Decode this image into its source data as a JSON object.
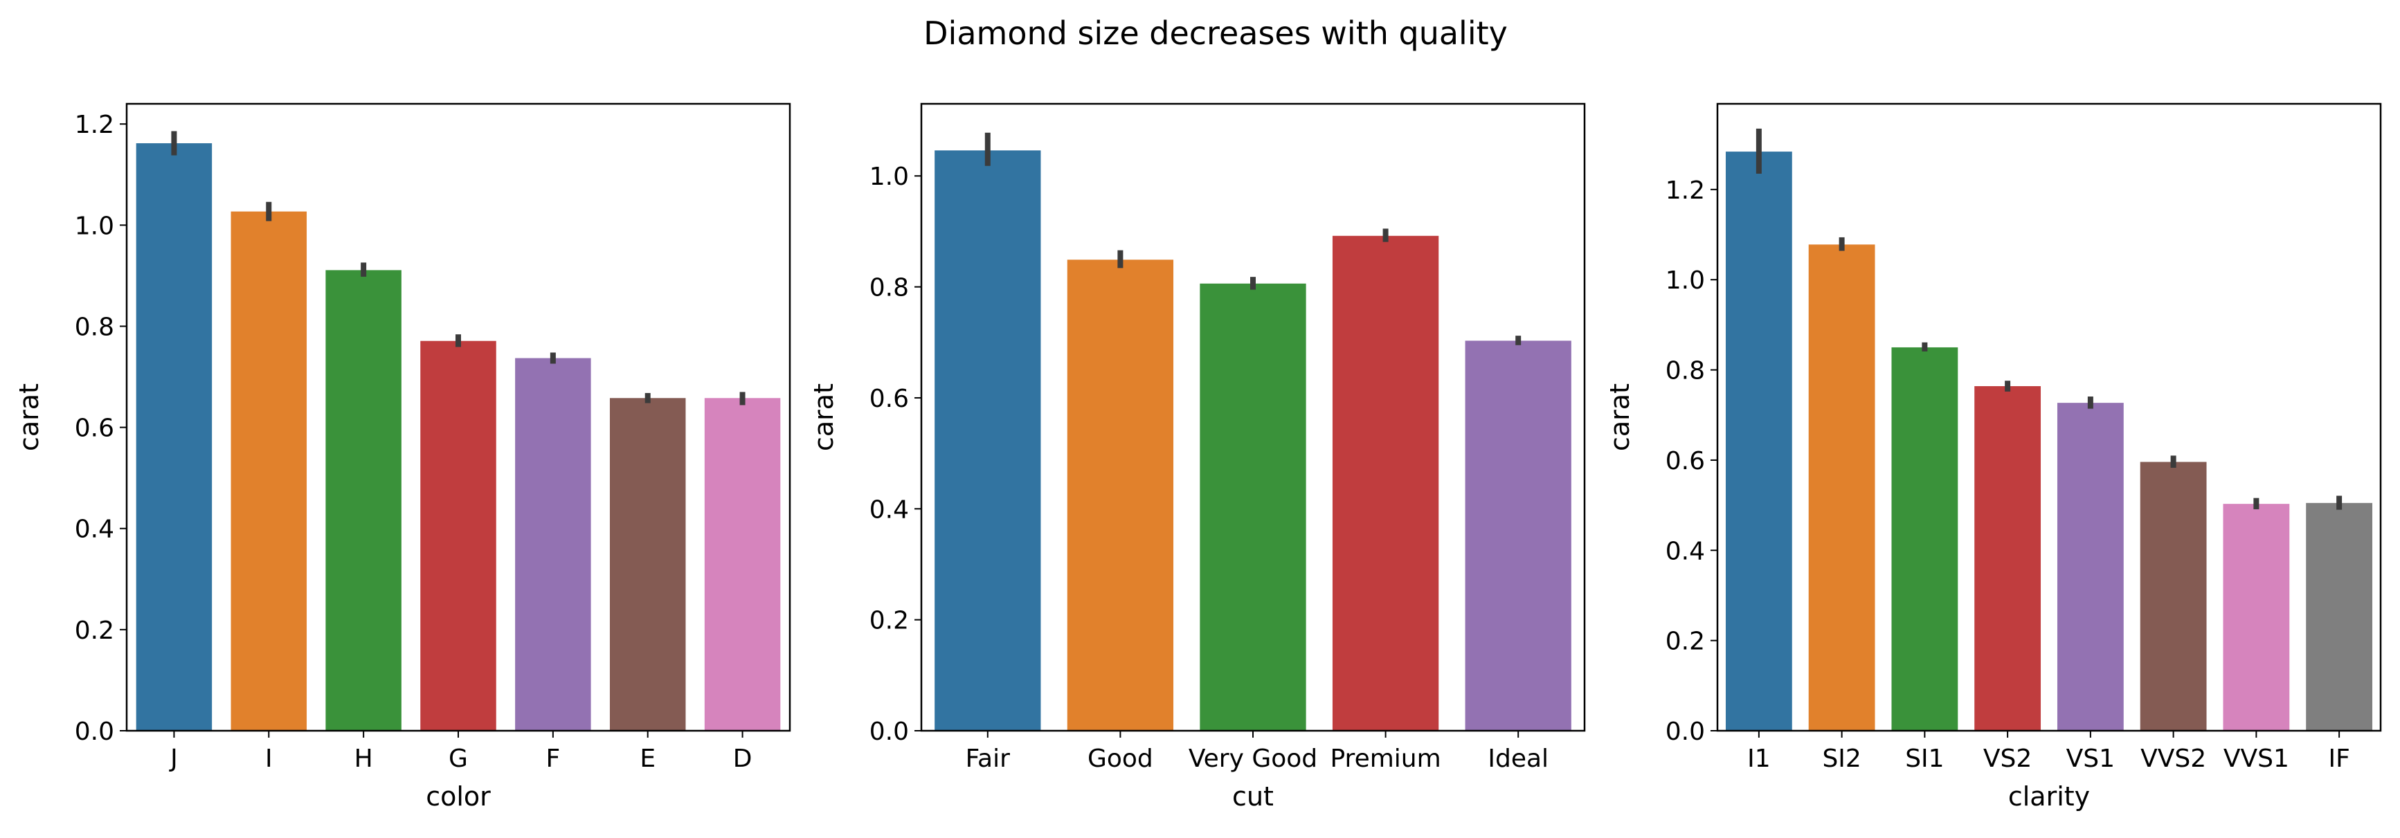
{
  "figure": {
    "title": "Diamond size decreases with quality"
  },
  "chart_data": [
    {
      "type": "bar",
      "xlabel": "color",
      "ylabel": "carat",
      "categories": [
        "J",
        "I",
        "H",
        "G",
        "F",
        "E",
        "D"
      ],
      "values": [
        1.162,
        1.027,
        0.911,
        0.771,
        0.737,
        0.658,
        0.658
      ],
      "errors": [
        [
          1.138,
          1.186
        ],
        [
          1.008,
          1.046
        ],
        [
          0.898,
          0.926
        ],
        [
          0.759,
          0.784
        ],
        [
          0.726,
          0.748
        ],
        [
          0.648,
          0.668
        ],
        [
          0.644,
          0.67
        ]
      ],
      "ylim": [
        0,
        1.24
      ],
      "yticks": [
        0.0,
        0.2,
        0.4,
        0.6,
        0.8,
        1.0,
        1.2
      ],
      "ytick_labels": [
        "0.0",
        "0.2",
        "0.4",
        "0.6",
        "0.8",
        "1.0",
        "1.2"
      ],
      "colors": [
        "#3274a1",
        "#e1812c",
        "#3a923a",
        "#c03d3e",
        "#9372b2",
        "#845b53",
        "#d684bd"
      ],
      "error_color": "#3b3b3b",
      "grid": false,
      "legend": "none"
    },
    {
      "type": "bar",
      "xlabel": "cut",
      "ylabel": "carat",
      "categories": [
        "Fair",
        "Good",
        "Very Good",
        "Premium",
        "Ideal"
      ],
      "values": [
        1.046,
        0.849,
        0.806,
        0.892,
        0.703
      ],
      "errors": [
        [
          1.018,
          1.078
        ],
        [
          0.834,
          0.866
        ],
        [
          0.795,
          0.818
        ],
        [
          0.881,
          0.905
        ],
        [
          0.695,
          0.712
        ]
      ],
      "ylim": [
        0,
        1.13
      ],
      "yticks": [
        0.0,
        0.2,
        0.4,
        0.6,
        0.8,
        1.0
      ],
      "ytick_labels": [
        "0.0",
        "0.2",
        "0.4",
        "0.6",
        "0.8",
        "1.0"
      ],
      "colors": [
        "#3274a1",
        "#e1812c",
        "#3a923a",
        "#c03d3e",
        "#9372b2"
      ],
      "error_color": "#3b3b3b",
      "grid": false,
      "legend": "none"
    },
    {
      "type": "bar",
      "xlabel": "clarity",
      "ylabel": "carat",
      "categories": [
        "I1",
        "SI2",
        "SI1",
        "VS2",
        "VS1",
        "VVS2",
        "VVS1",
        "IF"
      ],
      "values": [
        1.284,
        1.078,
        0.85,
        0.764,
        0.727,
        0.596,
        0.503,
        0.505
      ],
      "errors": [
        [
          1.235,
          1.335
        ],
        [
          1.064,
          1.094
        ],
        [
          0.841,
          0.861
        ],
        [
          0.752,
          0.776
        ],
        [
          0.714,
          0.741
        ],
        [
          0.583,
          0.61
        ],
        [
          0.491,
          0.516
        ],
        [
          0.49,
          0.521
        ]
      ],
      "ylim": [
        0,
        1.39
      ],
      "yticks": [
        0.0,
        0.2,
        0.4,
        0.6,
        0.8,
        1.0,
        1.2
      ],
      "ytick_labels": [
        "0.0",
        "0.2",
        "0.4",
        "0.6",
        "0.8",
        "1.0",
        "1.2"
      ],
      "colors": [
        "#3274a1",
        "#e1812c",
        "#3a923a",
        "#c03d3e",
        "#9372b2",
        "#845b53",
        "#d684bd",
        "#7f7f7f"
      ],
      "error_color": "#3b3b3b",
      "grid": false,
      "legend": "none"
    }
  ]
}
